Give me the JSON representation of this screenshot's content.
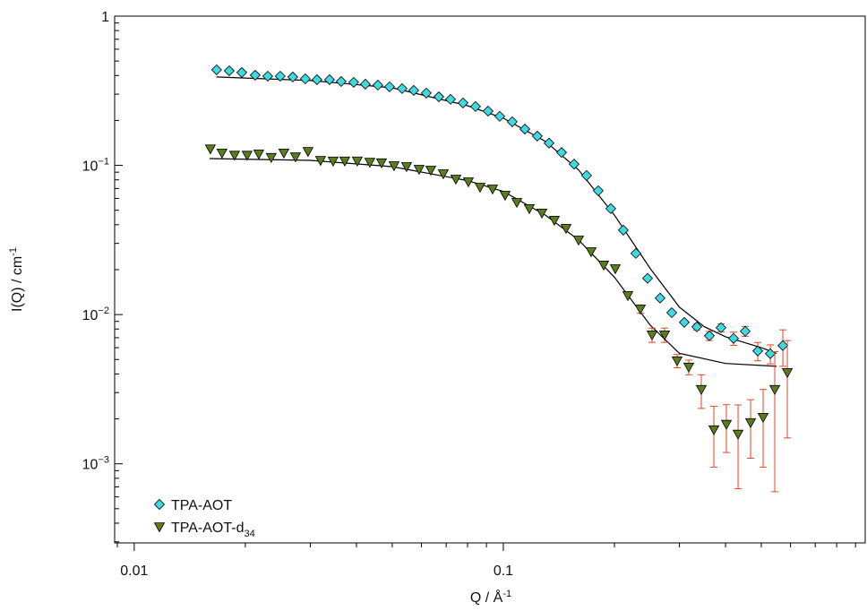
{
  "chart_data": {
    "type": "scatter",
    "xlabel": {
      "text": "Q / Å",
      "sup": "-1"
    },
    "ylabel": {
      "text": "I(Q) / cm",
      "sup": "-1"
    },
    "xscale": "log",
    "yscale": "log",
    "xlim": [
      0.00885,
      0.956
    ],
    "ylim": [
      0.000295,
      1
    ],
    "xticks": [
      0.01,
      0.1
    ],
    "yticks": [
      {
        "value": 0.001,
        "label": "10",
        "sup": "−3"
      },
      {
        "value": 0.01,
        "label": "10",
        "sup": "−2"
      },
      {
        "value": 0.1,
        "label": "10",
        "sup": "−1"
      },
      1
    ],
    "minor_ticks": true,
    "legend": "lower left",
    "error_color": "#e8442a",
    "series": [
      {
        "name": "TPA-AOT",
        "marker": "diamond",
        "color": "#3fd9e2",
        "x": [
          0.01672,
          0.01809,
          0.01956,
          0.02127,
          0.023,
          0.02486,
          0.02689,
          0.02908,
          0.03127,
          0.03382,
          0.03636,
          0.03932,
          0.04229,
          0.04573,
          0.04918,
          0.05318,
          0.05719,
          0.06184,
          0.06688,
          0.07193,
          0.07778,
          0.0841,
          0.09094,
          0.09779,
          0.1057,
          0.1144,
          0.1236,
          0.133,
          0.1438,
          0.1555,
          0.1681,
          0.1808,
          0.1955,
          0.2114,
          0.2286,
          0.2459,
          0.2659,
          0.286,
          0.3093,
          0.3344,
          0.3616,
          0.3889,
          0.4205,
          0.4523,
          0.4891,
          0.5289,
          0.5719
        ],
        "values": [
          0.437,
          0.43,
          0.419,
          0.402,
          0.396,
          0.396,
          0.391,
          0.38,
          0.375,
          0.375,
          0.365,
          0.36,
          0.35,
          0.345,
          0.336,
          0.327,
          0.318,
          0.305,
          0.288,
          0.277,
          0.262,
          0.248,
          0.231,
          0.213,
          0.196,
          0.175,
          0.157,
          0.141,
          0.122,
          0.102,
          0.0855,
          0.0676,
          0.0513,
          0.0368,
          0.0257,
          0.0175,
          0.0129,
          0.0103,
          0.00887,
          0.00828,
          0.00721,
          0.00817,
          0.00692,
          0.00773,
          0.0057,
          0.00547,
          0.0062
        ],
        "errors": [
          null,
          null,
          null,
          null,
          null,
          null,
          null,
          null,
          null,
          null,
          null,
          null,
          null,
          null,
          null,
          null,
          null,
          null,
          null,
          null,
          null,
          null,
          null,
          null,
          null,
          null,
          null,
          null,
          null,
          null,
          null,
          null,
          null,
          null,
          null,
          null,
          null,
          null,
          null,
          0.0004,
          0.0005,
          0.0005,
          0.0007,
          0.0006,
          0.0008,
          0.0008,
          0.0017
        ]
      },
      {
        "name": "TPA-AOT-d",
        "name_sub": "34",
        "marker": "triangle-down",
        "color": "#5b7d1c",
        "x": [
          0.01608,
          0.01729,
          0.0187,
          0.02022,
          0.02175,
          0.02351,
          0.02543,
          0.02735,
          0.02957,
          0.03198,
          0.03458,
          0.03719,
          0.04021,
          0.04348,
          0.04677,
          0.05057,
          0.05469,
          0.05913,
          0.0636,
          0.06877,
          0.07437,
          0.08042,
          0.08649,
          0.09352,
          0.1011,
          0.1088,
          0.1176,
          0.1272,
          0.1375,
          0.1479,
          0.1599,
          0.1729,
          0.187,
          0.2011,
          0.2175,
          0.2351,
          0.2529,
          0.2735,
          0.2957,
          0.318,
          0.3439,
          0.3719,
          0.4021,
          0.4325,
          0.4677,
          0.5057,
          0.5438,
          0.5881
        ],
        "values": [
          0.129,
          0.121,
          0.117,
          0.117,
          0.119,
          0.113,
          0.121,
          0.114,
          0.124,
          0.108,
          0.107,
          0.107,
          0.107,
          0.105,
          0.104,
          0.0995,
          0.0982,
          0.0942,
          0.0929,
          0.0879,
          0.0809,
          0.0776,
          0.0714,
          0.0695,
          0.0631,
          0.0565,
          0.0513,
          0.0479,
          0.0429,
          0.0378,
          0.0316,
          0.0264,
          0.0215,
          0.0203,
          0.0134,
          0.0109,
          0.00731,
          0.00731,
          0.0049,
          0.00445,
          0.00315,
          0.00169,
          0.00184,
          0.00158,
          0.00189,
          0.00205,
          0.00315,
          0.00409
        ],
        "errors": [
          null,
          null,
          null,
          null,
          null,
          null,
          null,
          null,
          null,
          null,
          null,
          null,
          null,
          null,
          null,
          null,
          null,
          null,
          null,
          null,
          null,
          null,
          null,
          null,
          null,
          null,
          null,
          null,
          null,
          null,
          null,
          null,
          null,
          null,
          null,
          0.0007,
          0.0008,
          0.0008,
          0.0005,
          0.0005,
          0.0008,
          0.00074,
          0.00065,
          0.0009,
          0.0008,
          0.0011,
          0.0025,
          0.0026
        ]
      }
    ],
    "fits": [
      {
        "color": "#000000",
        "x": [
          0.0167,
          0.03,
          0.05,
          0.08,
          0.1,
          0.13,
          0.16,
          0.2,
          0.25,
          0.3,
          0.35,
          0.4,
          0.5,
          0.55
        ],
        "values": [
          0.391,
          0.37,
          0.331,
          0.251,
          0.207,
          0.145,
          0.093,
          0.0464,
          0.0204,
          0.0112,
          0.0083,
          0.0071,
          0.006,
          0.0055
        ]
      },
      {
        "color": "#000000",
        "x": [
          0.016,
          0.03,
          0.05,
          0.08,
          0.1,
          0.13,
          0.16,
          0.2,
          0.25,
          0.3,
          0.4,
          0.55
        ],
        "values": [
          0.111,
          0.108,
          0.098,
          0.079,
          0.0668,
          0.0464,
          0.0316,
          0.0178,
          0.0085,
          0.0055,
          0.0047,
          0.0045
        ]
      }
    ]
  }
}
